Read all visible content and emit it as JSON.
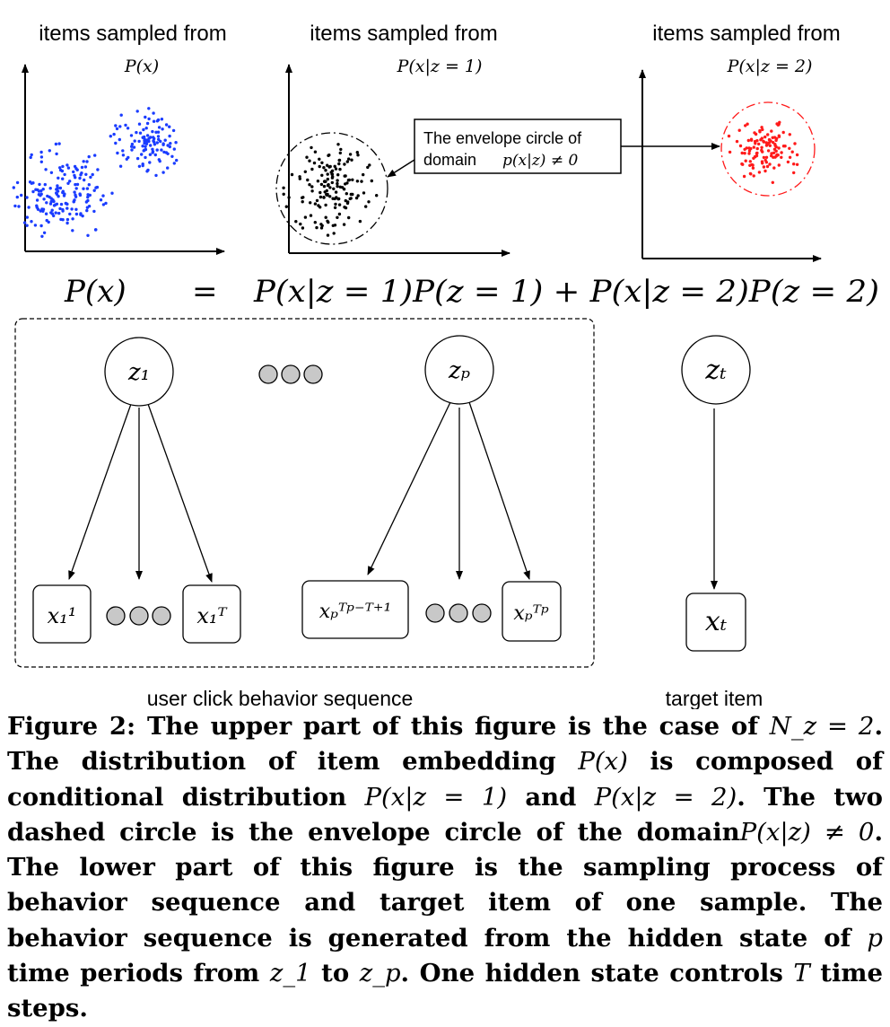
{
  "panels": [
    {
      "title": "items sampled from",
      "subtitle": "P(x)"
    },
    {
      "title": "items sampled from",
      "subtitle": "P(x|z = 1)"
    },
    {
      "title": "items sampled from",
      "subtitle": "P(x|z = 2)"
    }
  ],
  "colors": {
    "blue_points": "#1a3cff",
    "black_points": "#000000",
    "red_points": "#ff1a1a"
  },
  "envelope_box": {
    "line1": "The envelope circle of",
    "line2_word": "domain",
    "line2_math": "p(x|z) ≠ 0"
  },
  "equation": {
    "lhs": "P(x)",
    "eq": "=",
    "rhs": "P(x|z = 1)P(z = 1) + P(x|z = 2)P(z = 2)"
  },
  "graph": {
    "z1": "z₁",
    "zp": "zₚ",
    "zt": "zₜ",
    "x1_first": "x₁¹",
    "x1_last": "x₁ᵀ",
    "xp_first": "xₚᵀᵖ⁻ᵀ⁺¹",
    "xp_last": "xₚᵀᵖ",
    "xt": "xₜ",
    "sequence_label": "user click behavior sequence",
    "target_label": "target item"
  },
  "caption": {
    "label": "Figure 2:",
    "t1": "The upper part of this figure is the case of ",
    "m1": "N_z = 2",
    "t2": ". The distribution of item embedding ",
    "m2": "P(x)",
    "t3": " is composed of conditional distribution ",
    "m3": "P(x|z = 1)",
    "t4": " and ",
    "m4": "P(x|z = 2)",
    "t5": ". The two dashed circle is the envelope circle of the domain",
    "m5": "P(x|z) ≠ 0",
    "t6": ". The lower part of this figure is the sampling process of behavior sequence and target item of one sample. The behavior sequence is generated from the hidden state of ",
    "m6": "p",
    "t7": " time periods from ",
    "m7": "z_1",
    "t8": " to ",
    "m8": "z_p",
    "t9": ". One hidden state controls ",
    "m9": "T",
    "t10": " time steps."
  }
}
